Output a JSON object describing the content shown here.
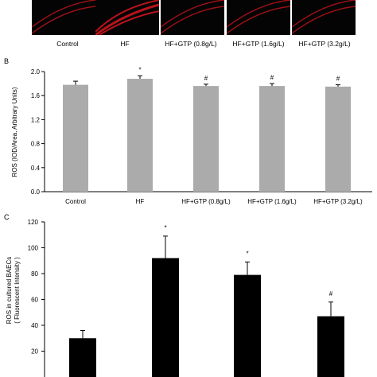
{
  "panel_a": {
    "labels": [
      "Control",
      "HF",
      "HF+GTP (0.8g/L)",
      "HF+GTP (1.6g/L)",
      "HF+GTP (3.2g/L)"
    ]
  },
  "panel_b_letter": "B",
  "panel_c_letter": "C",
  "colors": {
    "bar_b": "#ababab",
    "bar_c": "#000000",
    "stain": "#c4141c",
    "tile_bg": "#040404"
  },
  "chart_data": [
    {
      "type": "bar",
      "panel": "B",
      "categories": [
        "Control",
        "HF",
        "HF+GTP (0.8g/L)",
        "HF+GTP (1.6g/L)",
        "HF+GTP (3.2g/L)"
      ],
      "values": [
        1.78,
        1.88,
        1.76,
        1.76,
        1.75
      ],
      "errors": [
        0.06,
        0.05,
        0.03,
        0.04,
        0.03
      ],
      "annotations": [
        "",
        "*",
        "#",
        "#",
        "#"
      ],
      "ylabel": "ROS (IOD/Area, Arbitrary Units)",
      "ylim": [
        0.0,
        2.0
      ],
      "yticks": [
        "0.0",
        "0.4",
        "0.8",
        "1.2",
        "1.6",
        "2.0"
      ],
      "grid": false
    },
    {
      "type": "bar",
      "panel": "C",
      "values": [
        30,
        92,
        79,
        47
      ],
      "errors": [
        6,
        17,
        10,
        11
      ],
      "annotations": [
        "",
        "*",
        "*",
        "#"
      ],
      "ylabel": [
        "ROS in cultured BAECs",
        "( Fluorescent Intensity )"
      ],
      "ylim": [
        0,
        120
      ],
      "yticks": [
        "20",
        "40",
        "60",
        "80",
        "100",
        "120"
      ],
      "grid": false
    }
  ]
}
